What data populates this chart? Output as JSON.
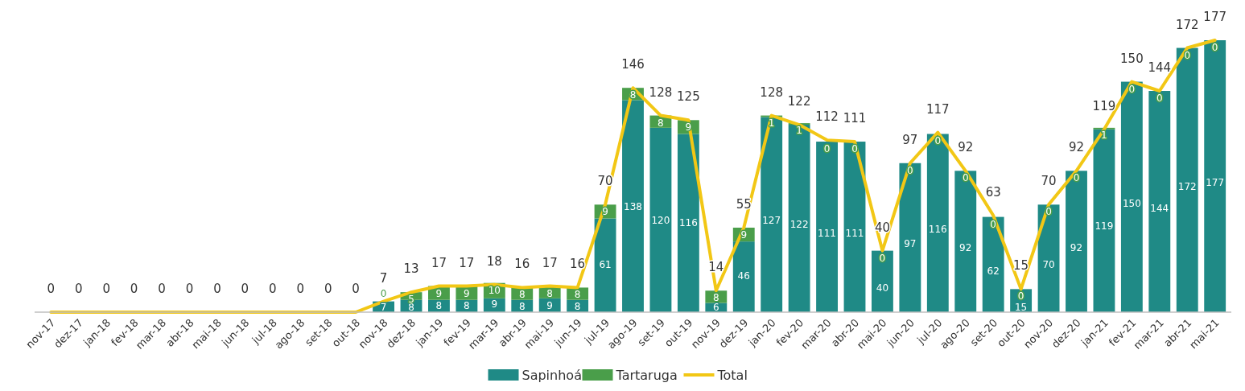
{
  "chart_data": {
    "type": "bar",
    "stacked": true,
    "legend": "bottom",
    "categories": [
      "nov-17",
      "dez-17",
      "jan-18",
      "fev-18",
      "mar-18",
      "abr-18",
      "mai-18",
      "jun-18",
      "jul-18",
      "ago-18",
      "set-18",
      "out-18",
      "nov-18",
      "dez-18",
      "jan-19",
      "fev-19",
      "mar-19",
      "abr-19",
      "mai-19",
      "jun-19",
      "jul-19",
      "ago-19",
      "set-19",
      "out-19",
      "nov-19",
      "dez-19",
      "jan-20",
      "fev-20",
      "mar-20",
      "abr-20",
      "mai-20",
      "jun-20",
      "jul-20",
      "ago-20",
      "set-20",
      "out-20",
      "nov-20",
      "dez-20",
      "jan-21",
      "fev-21",
      "mar-21",
      "abr-21",
      "mai-21"
    ],
    "series": [
      {
        "name": "Sapinhoá",
        "color": "#1f8a86",
        "values": [
          0,
          0,
          0,
          0,
          0,
          0,
          0,
          0,
          0,
          0,
          0,
          0,
          7,
          8,
          8,
          8,
          9,
          8,
          9,
          8,
          61,
          138,
          120,
          116,
          6,
          46,
          127,
          122,
          111,
          111,
          40,
          97,
          116,
          92,
          62,
          15,
          70,
          92,
          119,
          150,
          144,
          172,
          177
        ],
        "value_labels": [
          null,
          null,
          null,
          null,
          null,
          null,
          null,
          null,
          null,
          null,
          null,
          null,
          "7",
          "8",
          "8",
          "8",
          "9",
          "8",
          "9",
          "8",
          "61",
          "138",
          "120",
          "116",
          "6",
          "46",
          "127",
          "122",
          "111",
          "111",
          "40",
          "97",
          "116",
          "92",
          "62",
          "15",
          "70",
          "92",
          "119",
          "150",
          "144",
          "172",
          "177"
        ]
      },
      {
        "name": "Tartaruga",
        "color": "#4a9e4a",
        "values": [
          0,
          0,
          0,
          0,
          0,
          0,
          0,
          0,
          0,
          0,
          0,
          0,
          0,
          5,
          9,
          9,
          10,
          8,
          8,
          8,
          9,
          8,
          8,
          9,
          8,
          9,
          1,
          1,
          0,
          0,
          0,
          0,
          0,
          0,
          0,
          0,
          0,
          0,
          1,
          0,
          0,
          0,
          0
        ],
        "value_labels": [
          null,
          null,
          null,
          null,
          null,
          null,
          null,
          null,
          null,
          null,
          null,
          null,
          "0",
          "5",
          "9",
          "9",
          "10",
          "8",
          "8",
          "8",
          "9",
          "8",
          "8",
          "9",
          "8",
          "9",
          "1",
          "1",
          "0",
          "0",
          "0",
          "0",
          "0",
          "0",
          "0",
          "0",
          "0",
          "0",
          "1",
          "0",
          "0",
          "0",
          "0"
        ]
      },
      {
        "name": "Total",
        "type": "line",
        "color": "#f2c715",
        "values": [
          0,
          0,
          0,
          0,
          0,
          0,
          0,
          0,
          0,
          0,
          0,
          0,
          7,
          13,
          17,
          17,
          18,
          16,
          17,
          16,
          70,
          146,
          128,
          125,
          14,
          55,
          128,
          122,
          112,
          111,
          40,
          97,
          117,
          92,
          63,
          15,
          70,
          92,
          119,
          150,
          144,
          172,
          177
        ],
        "value_labels": [
          "0",
          "0",
          "0",
          "0",
          "0",
          "0",
          "0",
          "0",
          "0",
          "0",
          "0",
          "0",
          "7",
          "13",
          "17",
          "17",
          "18",
          "16",
          "17",
          "16",
          "70",
          "146",
          "128",
          "125",
          "14",
          "55",
          "128",
          "122",
          "112",
          "111",
          "40",
          "97",
          "117",
          "92",
          "63",
          "15",
          "70",
          "92",
          "119",
          "150",
          "144",
          "172",
          "177"
        ]
      }
    ]
  }
}
